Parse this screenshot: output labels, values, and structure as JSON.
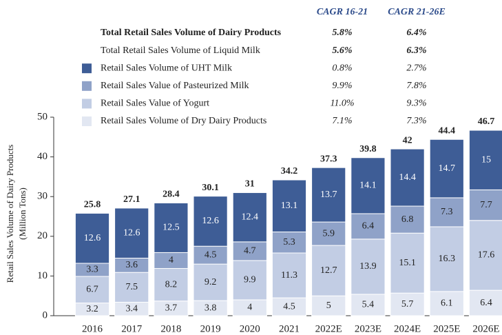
{
  "chart_data": {
    "type": "stacked_bar",
    "ylabel": [
      "Retail Sales Volume of Dairy Products",
      "(Million Tons)"
    ],
    "categories": [
      "2016",
      "2017",
      "2018",
      "2019",
      "2020",
      "2021",
      "2022E",
      "2023E",
      "2024E",
      "2025E",
      "2026E"
    ],
    "ylim": [
      0,
      50
    ],
    "yticks": [
      0,
      10,
      20,
      30,
      40,
      50
    ],
    "cagr_headers": [
      "CAGR 16-21",
      "CAGR 21-26E"
    ],
    "total_rows": [
      {
        "name": "Total Retail Sales Volume of Dairy Products",
        "cagr": [
          "5.8%",
          "6.4%"
        ]
      },
      {
        "name": "Total Retail Sales Volume of Liquid Milk",
        "cagr": [
          "5.6%",
          "6.3%"
        ]
      }
    ],
    "series": [
      {
        "name": "Retail Sales Volume of Dry Dairy Products",
        "color": "#e2e7f2",
        "label_color": "#222",
        "cagr": [
          "7.1%",
          "7.3%"
        ],
        "values": [
          3.2,
          3.4,
          3.7,
          3.8,
          4.0,
          4.5,
          5.0,
          5.4,
          5.7,
          6.1,
          6.4
        ]
      },
      {
        "name": "Retail Sales Value of Yogurt",
        "color": "#c2cde4",
        "label_color": "#222",
        "cagr": [
          "11.0%",
          "9.3%"
        ],
        "values": [
          6.7,
          7.5,
          8.2,
          9.2,
          9.9,
          11.3,
          12.7,
          13.9,
          15.1,
          16.3,
          17.6
        ]
      },
      {
        "name": "Retail Sales Value of Pasteurized Milk",
        "color": "#8fa2c8",
        "label_color": "#222",
        "cagr": [
          "9.9%",
          "7.8%"
        ],
        "values": [
          3.3,
          3.6,
          4.0,
          4.5,
          4.7,
          5.3,
          5.9,
          6.4,
          6.8,
          7.3,
          7.7
        ]
      },
      {
        "name": "Retail Sales Volume of UHT Milk",
        "color": "#3e5d96",
        "label_color": "#ffffff",
        "cagr": [
          "0.8%",
          "2.7%"
        ],
        "values": [
          12.6,
          12.6,
          12.5,
          12.6,
          12.4,
          13.1,
          13.7,
          14.1,
          14.4,
          14.7,
          15.0
        ]
      }
    ],
    "totals": [
      25.8,
      27.1,
      28.4,
      30.1,
      31.0,
      34.2,
      37.3,
      39.8,
      42.0,
      44.4,
      46.7
    ]
  }
}
